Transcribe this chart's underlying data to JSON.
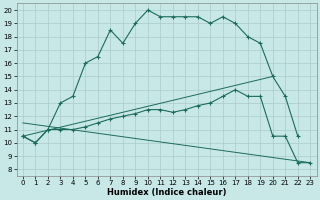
{
  "xlabel": "Humidex (Indice chaleur)",
  "bg_color": "#c8e8e8",
  "grid_color": "#aacaca",
  "line_color": "#1a6b5a",
  "xlim": [
    -0.5,
    23.5
  ],
  "ylim": [
    7.5,
    20.5
  ],
  "yticks": [
    8,
    9,
    10,
    11,
    12,
    13,
    14,
    15,
    16,
    17,
    18,
    19,
    20
  ],
  "xticks": [
    0,
    1,
    2,
    3,
    4,
    5,
    6,
    7,
    8,
    9,
    10,
    11,
    12,
    13,
    14,
    15,
    16,
    17,
    18,
    19,
    20,
    21,
    22,
    23
  ],
  "line1_x": [
    0,
    1,
    2,
    3,
    4,
    5,
    6,
    7,
    8,
    9,
    10,
    11,
    12,
    13,
    14,
    15,
    16,
    17,
    18,
    19,
    20,
    21,
    22
  ],
  "line1_y": [
    10.5,
    10.0,
    11.0,
    13.0,
    13.5,
    16.0,
    16.5,
    18.5,
    17.5,
    19.0,
    20.0,
    19.5,
    19.5,
    19.5,
    19.5,
    19.0,
    19.5,
    19.0,
    18.0,
    17.5,
    15.0,
    13.5,
    10.5
  ],
  "line2_x": [
    0,
    1,
    2,
    3,
    4,
    5,
    6,
    7,
    8,
    9,
    10,
    11,
    12,
    13,
    14,
    15,
    16,
    17,
    18,
    19,
    20,
    21,
    22,
    23
  ],
  "line2_y": [
    10.5,
    10.0,
    11.0,
    11.0,
    11.0,
    11.2,
    11.5,
    11.8,
    12.0,
    12.2,
    12.5,
    12.5,
    12.3,
    12.5,
    12.8,
    13.0,
    13.5,
    14.0,
    13.5,
    13.5,
    10.5,
    10.5,
    8.5,
    8.5
  ],
  "line3_x": [
    0,
    20
  ],
  "line3_y": [
    10.5,
    15.0
  ],
  "line4_x": [
    0,
    23
  ],
  "line4_y": [
    11.5,
    8.5
  ]
}
